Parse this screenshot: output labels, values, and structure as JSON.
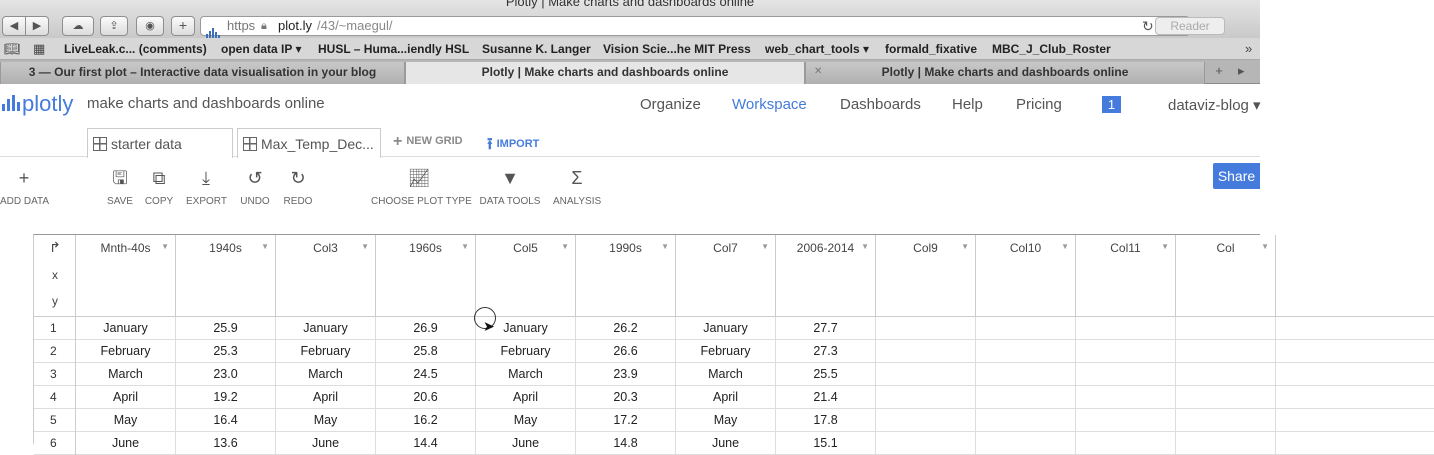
{
  "browser": {
    "window_title": "Plotly | Make charts and dashboards online",
    "https": "https",
    "url_host": "plot.ly",
    "url_path": "/43/~maegul/",
    "reader": "Reader",
    "bookmarks": [
      "LiveLeak.c... (comments)",
      "open data IP ▾",
      "HUSL – Huma...iendly HSL",
      "Susanne K. Langer",
      "Vision Scie...he MIT Press",
      "web_chart_tools ▾",
      "formald_fixative",
      "MBC_J_Club_Roster"
    ],
    "tabs": [
      "3 — Our first plot – Interactive data visualisation in your blog",
      "Plotly | Make charts and dashboards online",
      "Plotly | Make charts and dashboards online"
    ]
  },
  "app": {
    "logo_text": "plotly",
    "tagline": "make charts and dashboards online",
    "nav": [
      "Organize",
      "Workspace",
      "Dashboards",
      "Help",
      "Pricing"
    ],
    "notifications": "1",
    "user": "dataviz-blog ▾",
    "share": "Share"
  },
  "grid_tabs": {
    "tabs": [
      "starter data",
      "Max_Temp_Dec..."
    ],
    "new_grid": "NEW GRID",
    "import": "IMPORT"
  },
  "toolbar": {
    "add_data": "ADD DATA",
    "save": "SAVE",
    "copy": "COPY",
    "export": "EXPORT",
    "undo": "UNDO",
    "redo": "REDO",
    "plot_type": "CHOOSE PLOT TYPE",
    "data_tools": "DATA TOOLS",
    "analysis": "ANALYSIS"
  },
  "grid": {
    "axis_labels": [
      "x",
      "y"
    ],
    "columns": [
      "Mnth-40s",
      "1940s",
      "Col3",
      "1960s",
      "Col5",
      "1990s",
      "Col7",
      "2006-2014",
      "Col9",
      "Col10",
      "Col11",
      "Col"
    ],
    "rows": [
      {
        "num": "1",
        "cells": [
          "January",
          "25.9",
          "January",
          "26.9",
          "January",
          "26.2",
          "January",
          "27.7"
        ]
      },
      {
        "num": "2",
        "cells": [
          "February",
          "25.3",
          "February",
          "25.8",
          "February",
          "26.6",
          "February",
          "27.3"
        ]
      },
      {
        "num": "3",
        "cells": [
          "March",
          "23.0",
          "March",
          "24.5",
          "March",
          "23.9",
          "March",
          "25.5"
        ]
      },
      {
        "num": "4",
        "cells": [
          "April",
          "19.2",
          "April",
          "20.6",
          "April",
          "20.3",
          "April",
          "21.4"
        ]
      },
      {
        "num": "5",
        "cells": [
          "May",
          "16.4",
          "May",
          "16.2",
          "May",
          "17.2",
          "May",
          "17.8"
        ]
      },
      {
        "num": "6",
        "cells": [
          "June",
          "13.6",
          "June",
          "14.4",
          "June",
          "14.8",
          "June",
          "15.1"
        ]
      }
    ]
  }
}
